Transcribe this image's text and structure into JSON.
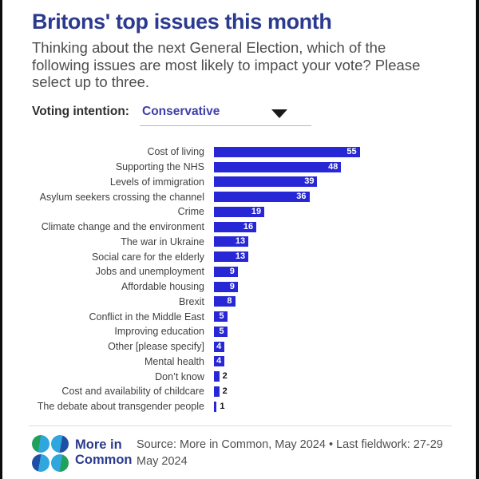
{
  "header": {
    "title": "Britons' top issues this month",
    "subtitle": "Thinking about the next General Election, which of the following issues are most likely to impact your vote? Please select up to three."
  },
  "controls": {
    "label": "Voting intention:",
    "selected_option": "Conservative",
    "dropdown_icon": "chevron-down-icon"
  },
  "chart_data": {
    "type": "bar",
    "orientation": "horizontal",
    "categories": [
      "Cost of living",
      "Supporting the NHS",
      "Levels of immigration",
      "Asylum seekers crossing the channel",
      "Crime",
      "Climate change and the environment",
      "The war in Ukraine",
      "Social care for the elderly",
      "Jobs and unemployment",
      "Affordable housing",
      "Brexit",
      "Conflict in the Middle East",
      "Improving education",
      "Other [please specify]",
      "Mental health",
      "Don’t know",
      "Cost and availability of childcare",
      "The debate about transgender people"
    ],
    "values": [
      55,
      48,
      39,
      36,
      19,
      16,
      13,
      13,
      9,
      9,
      8,
      5,
      5,
      4,
      4,
      2,
      2,
      1
    ],
    "xlim": [
      0,
      60
    ],
    "grid": false,
    "legend": false,
    "value_labels": "shown at bar end, inside bar when value >= 4, outside otherwise"
  },
  "footer": {
    "logo_text": "More in Common",
    "source": "Source: More in Common, May 2024 • Last fieldwork: 27-29 May 2024"
  },
  "colors": {
    "title": "#2b3a8f",
    "bar": "#2727d6",
    "dropdown_text": "#3e3fa9",
    "value_inside": "#ffffff",
    "value_outside": "#111111",
    "logo_cyan": "#2fa6dc",
    "logo_blue": "#1f4fa5",
    "logo_green": "#21a05b"
  }
}
